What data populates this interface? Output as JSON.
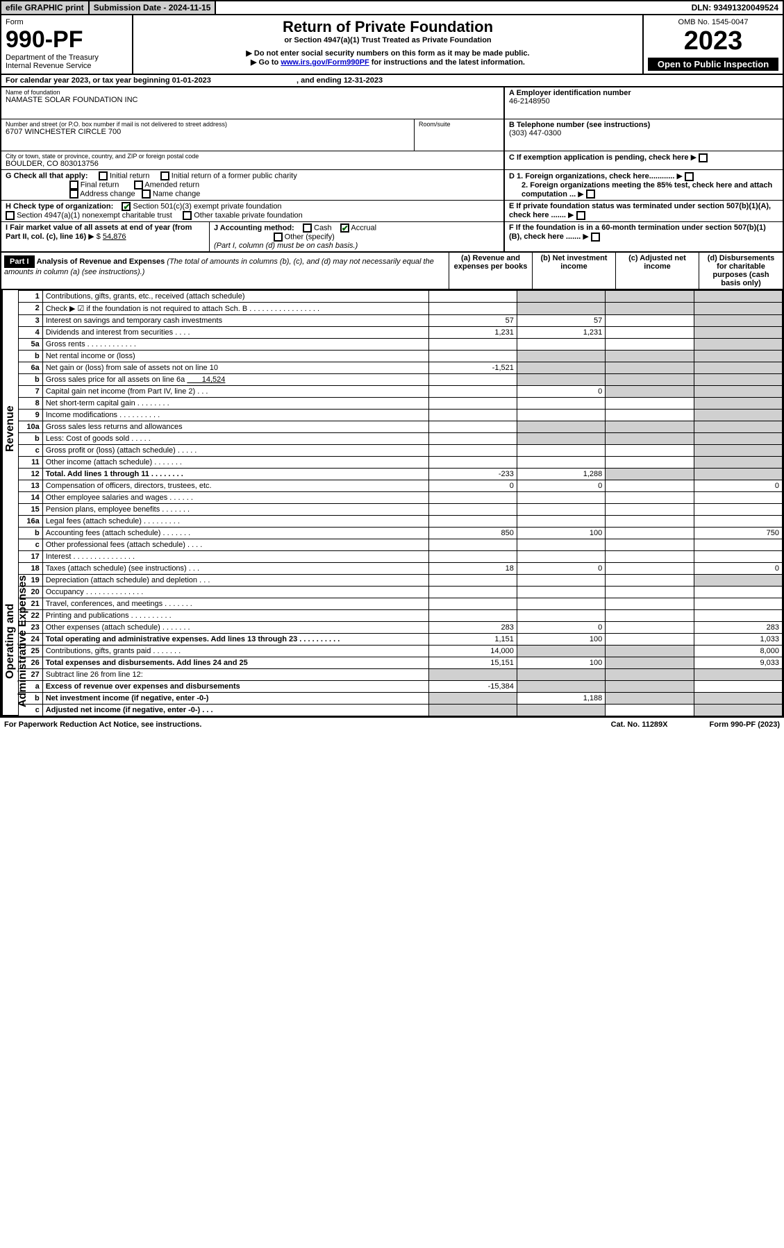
{
  "topbar": {
    "efile": "efile GRAPHIC print",
    "subdate_label": "Submission Date - 2024-11-15",
    "dln": "DLN: 93491320049524"
  },
  "header": {
    "form_label": "Form",
    "form_number": "990-PF",
    "dept": "Department of the Treasury",
    "irs": "Internal Revenue Service",
    "title": "Return of Private Foundation",
    "subtitle": "or Section 4947(a)(1) Trust Treated as Private Foundation",
    "note1": "▶ Do not enter social security numbers on this form as it may be made public.",
    "note2_prefix": "▶ Go to ",
    "note2_link": "www.irs.gov/Form990PF",
    "note2_suffix": " for instructions and the latest information.",
    "omb": "OMB No. 1545-0047",
    "year": "2023",
    "open_public": "Open to Public Inspection"
  },
  "calyear": {
    "label": "For calendar year 2023, or tax year beginning 01-01-2023",
    "ending": ", and ending 12-31-2023"
  },
  "foundation": {
    "name_label": "Name of foundation",
    "name": "NAMASTE SOLAR FOUNDATION INC",
    "street_label": "Number and street (or P.O. box number if mail is not delivered to street address)",
    "street": "6707 WINCHESTER CIRCLE 700",
    "room_label": "Room/suite",
    "city_label": "City or town, state or province, country, and ZIP or foreign postal code",
    "city": "BOULDER, CO  803013756"
  },
  "sideA": {
    "label": "A Employer identification number",
    "value": "46-2148950"
  },
  "sideB": {
    "label": "B Telephone number (see instructions)",
    "value": "(303) 447-0300"
  },
  "sideC": {
    "label": "C If exemption application is pending, check here"
  },
  "sideD": {
    "d1": "D 1. Foreign organizations, check here............",
    "d2": "2. Foreign organizations meeting the 85% test, check here and attach computation ..."
  },
  "sideE": {
    "label": "E  If private foundation status was terminated under section 507(b)(1)(A), check here ......."
  },
  "sideF": {
    "label": "F  If the foundation is in a 60-month termination under section 507(b)(1)(B), check here ......."
  },
  "checkG": {
    "label": "G Check all that apply:",
    "initial": "Initial return",
    "initial_former": "Initial return of a former public charity",
    "final": "Final return",
    "amended": "Amended return",
    "address": "Address change",
    "namechg": "Name change"
  },
  "checkH": {
    "label": "H Check type of organization:",
    "c3": "Section 501(c)(3) exempt private foundation",
    "trust": "Section 4947(a)(1) nonexempt charitable trust",
    "other_tax": "Other taxable private foundation"
  },
  "checkI": {
    "label": "I Fair market value of all assets at end of year (from Part II, col. (c), line 16)",
    "value": "54,876"
  },
  "checkJ": {
    "label": "J Accounting method:",
    "cash": "Cash",
    "accrual": "Accrual",
    "other": "Other (specify)",
    "note": "(Part I, column (d) must be on cash basis.)"
  },
  "part1": {
    "badge": "Part I",
    "title": "Analysis of Revenue and Expenses",
    "subtitle": "(The total of amounts in columns (b), (c), and (d) may not necessarily equal the amounts in column (a) (see instructions).)",
    "col_a": "(a)  Revenue and expenses per books",
    "col_b": "(b)  Net investment income",
    "col_c": "(c)  Adjusted net income",
    "col_d": "(d)  Disbursements for charitable purposes (cash basis only)"
  },
  "revenue_label": "Revenue",
  "expenses_label": "Operating and Administrative Expenses",
  "lines": {
    "l1": {
      "no": "1",
      "desc": "Contributions, gifts, grants, etc., received (attach schedule)"
    },
    "l2": {
      "no": "2",
      "desc": "Check ▶ ☑ if the foundation is not required to attach Sch. B  . . . . . . . . . . . . . . . . ."
    },
    "l3": {
      "no": "3",
      "desc": "Interest on savings and temporary cash investments",
      "a": "57",
      "b": "57"
    },
    "l4": {
      "no": "4",
      "desc": "Dividends and interest from securities  .  .  .  .",
      "a": "1,231",
      "b": "1,231"
    },
    "l5a": {
      "no": "5a",
      "desc": "Gross rents  .  .  .  .  .  .  .  .  .  .  .  ."
    },
    "l5b": {
      "no": "b",
      "desc": "Net rental income or (loss)"
    },
    "l6a": {
      "no": "6a",
      "desc": "Net gain or (loss) from sale of assets not on line 10",
      "a": "-1,521"
    },
    "l6b": {
      "no": "b",
      "desc": "Gross sales price for all assets on line 6a",
      "inline": "14,524"
    },
    "l7": {
      "no": "7",
      "desc": "Capital gain net income (from Part IV, line 2)  .  .  .",
      "b": "0"
    },
    "l8": {
      "no": "8",
      "desc": "Net short-term capital gain  .  .  .  .  .  .  .  ."
    },
    "l9": {
      "no": "9",
      "desc": "Income modifications  .  .  .  .  .  .  .  .  .  ."
    },
    "l10a": {
      "no": "10a",
      "desc": "Gross sales less returns and allowances"
    },
    "l10b": {
      "no": "b",
      "desc": "Less: Cost of goods sold  .  .  .  .  ."
    },
    "l10c": {
      "no": "c",
      "desc": "Gross profit or (loss) (attach schedule)  .  .  .  .  ."
    },
    "l11": {
      "no": "11",
      "desc": "Other income (attach schedule)  .  .  .  .  .  .  ."
    },
    "l12": {
      "no": "12",
      "desc": "Total. Add lines 1 through 11  .  .  .  .  .  .  .  .",
      "a": "-233",
      "b": "1,288",
      "bold": true
    },
    "l13": {
      "no": "13",
      "desc": "Compensation of officers, directors, trustees, etc.",
      "a": "0",
      "b": "0",
      "d": "0"
    },
    "l14": {
      "no": "14",
      "desc": "Other employee salaries and wages  .  .  .  .  .  ."
    },
    "l15": {
      "no": "15",
      "desc": "Pension plans, employee benefits  .  .  .  .  .  .  ."
    },
    "l16a": {
      "no": "16a",
      "desc": "Legal fees (attach schedule)  .  .  .  .  .  .  .  .  ."
    },
    "l16b": {
      "no": "b",
      "desc": "Accounting fees (attach schedule)  .  .  .  .  .  .  .",
      "a": "850",
      "b": "100",
      "d": "750"
    },
    "l16c": {
      "no": "c",
      "desc": "Other professional fees (attach schedule)  .  .  .  ."
    },
    "l17": {
      "no": "17",
      "desc": "Interest  .  .  .  .  .  .  .  .  .  .  .  .  .  .  ."
    },
    "l18": {
      "no": "18",
      "desc": "Taxes (attach schedule) (see instructions)  .  .  .",
      "a": "18",
      "b": "0",
      "d": "0"
    },
    "l19": {
      "no": "19",
      "desc": "Depreciation (attach schedule) and depletion  .  .  ."
    },
    "l20": {
      "no": "20",
      "desc": "Occupancy  .  .  .  .  .  .  .  .  .  .  .  .  .  ."
    },
    "l21": {
      "no": "21",
      "desc": "Travel, conferences, and meetings  .  .  .  .  .  .  ."
    },
    "l22": {
      "no": "22",
      "desc": "Printing and publications  .  .  .  .  .  .  .  .  .  ."
    },
    "l23": {
      "no": "23",
      "desc": "Other expenses (attach schedule)  .  .  .  .  .  .  .",
      "a": "283",
      "b": "0",
      "d": "283"
    },
    "l24": {
      "no": "24",
      "desc": "Total operating and administrative expenses. Add lines 13 through 23  .  .  .  .  .  .  .  .  .  .",
      "a": "1,151",
      "b": "100",
      "d": "1,033",
      "bold": true
    },
    "l25": {
      "no": "25",
      "desc": "Contributions, gifts, grants paid  .  .  .  .  .  .  .",
      "a": "14,000",
      "d": "8,000"
    },
    "l26": {
      "no": "26",
      "desc": "Total expenses and disbursements. Add lines 24 and 25",
      "a": "15,151",
      "b": "100",
      "d": "9,033",
      "bold": true
    },
    "l27": {
      "no": "27",
      "desc": "Subtract line 26 from line 12:"
    },
    "l27a": {
      "no": "a",
      "desc": "Excess of revenue over expenses and disbursements",
      "a": "-15,384",
      "bold": true
    },
    "l27b": {
      "no": "b",
      "desc": "Net investment income (if negative, enter -0-)",
      "b": "1,188",
      "bold": true
    },
    "l27c": {
      "no": "c",
      "desc": "Adjusted net income (if negative, enter -0-)  .  .  .",
      "bold": true
    }
  },
  "footer": {
    "left": "For Paperwork Reduction Act Notice, see instructions.",
    "mid": "Cat. No. 11289X",
    "right": "Form 990-PF (2023)"
  },
  "colors": {
    "shaded": "#d0d0d0",
    "check": "#006000",
    "link": "#0000cc"
  }
}
